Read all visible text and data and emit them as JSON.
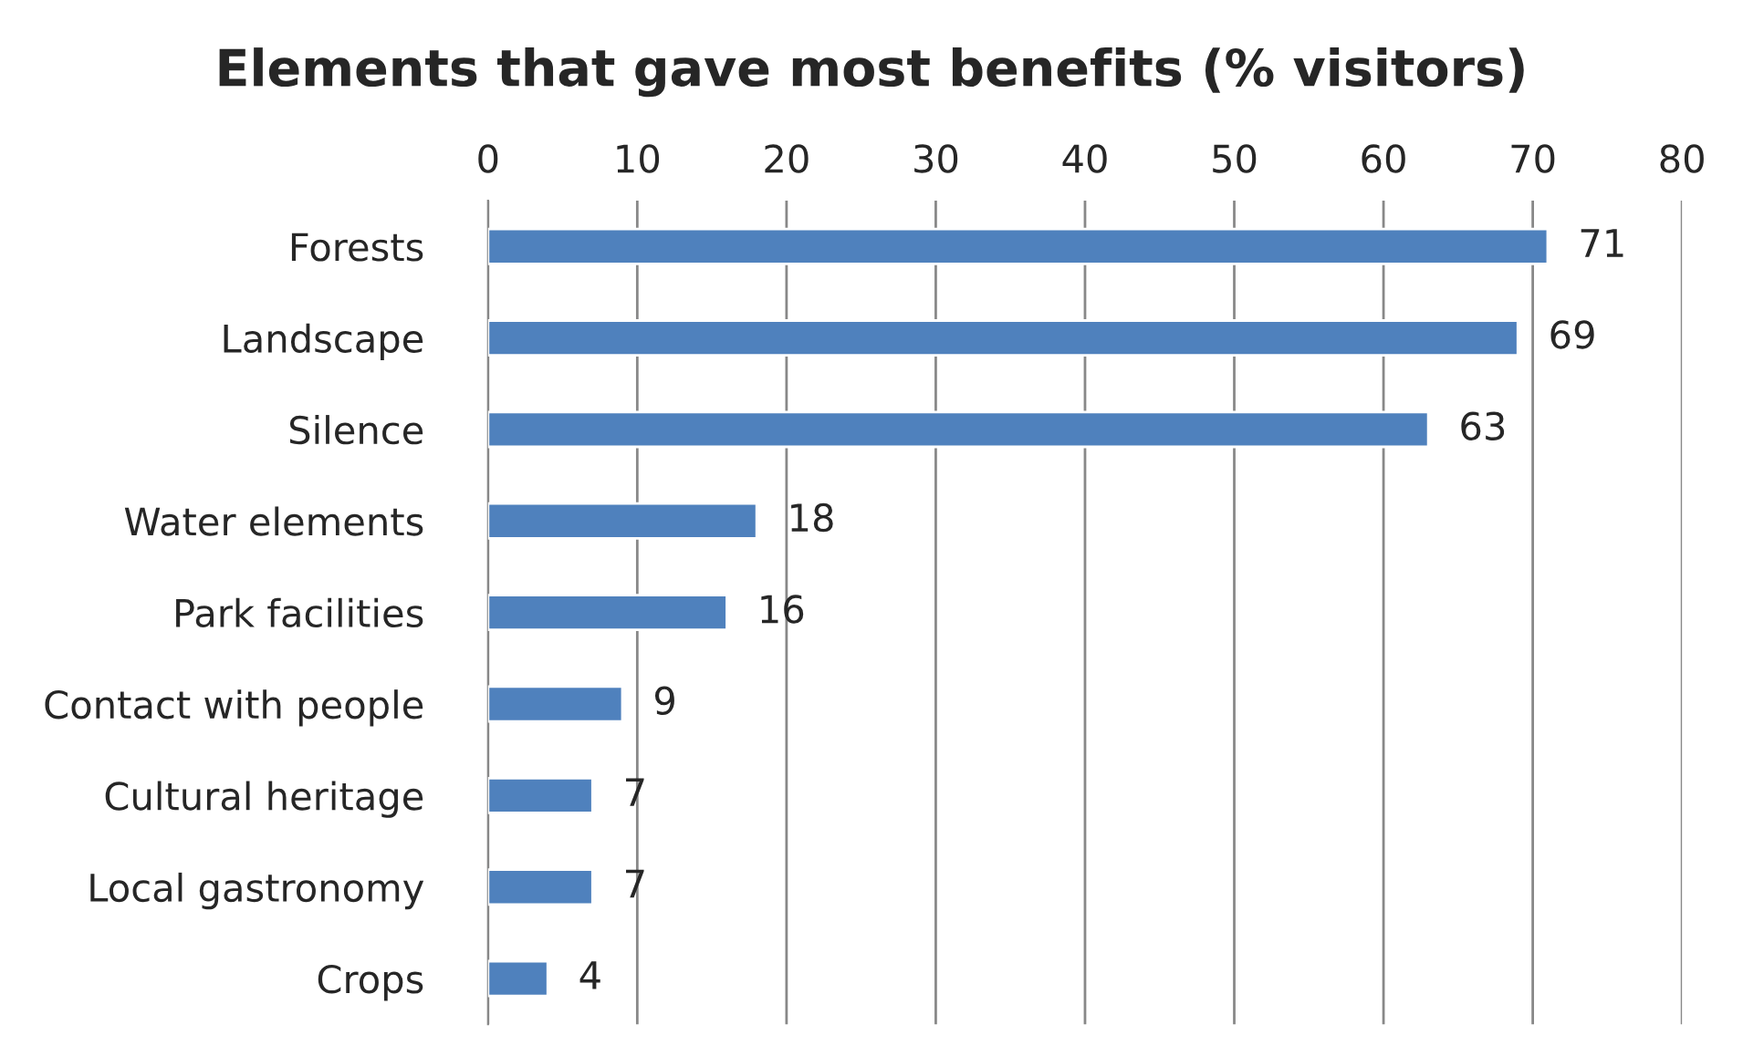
{
  "chart_data": {
    "type": "bar",
    "orientation": "horizontal",
    "title": "Elements that gave most benefits (% visitors)",
    "categories": [
      "Forests",
      "Landscape",
      "Silence",
      "Water elements",
      "Park facilities",
      "Contact with people",
      "Cultural heritage",
      "Local gastronomy",
      "Crops"
    ],
    "values": [
      71,
      69,
      63,
      18,
      16,
      9,
      7,
      7,
      4
    ],
    "color": "#4f81bd",
    "xlim": [
      0,
      80
    ],
    "xticks": [
      0,
      10,
      20,
      30,
      40,
      50,
      60,
      70,
      80
    ],
    "grid": "x",
    "data_labels": true,
    "legend": false
  }
}
